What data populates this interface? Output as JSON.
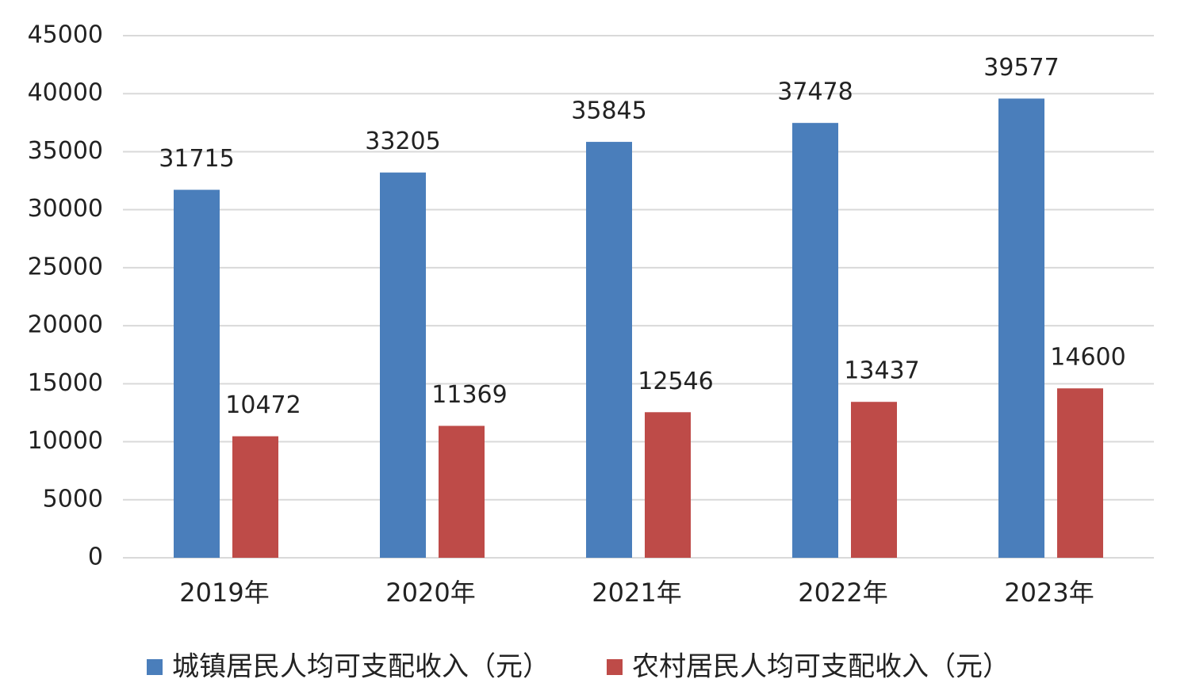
{
  "chart_data": {
    "type": "bar",
    "categories": [
      "2019年",
      "2020年",
      "2021年",
      "2022年",
      "2023年"
    ],
    "series": [
      {
        "name": "城镇居民人均可支配收入（元）",
        "color": "#4a7ebb",
        "values": [
          31715,
          33205,
          35845,
          37478,
          39577
        ]
      },
      {
        "name": "农村居民人均可支配收入（元）",
        "color": "#be4b48",
        "values": [
          10472,
          11369,
          12546,
          13437,
          14600
        ]
      }
    ],
    "ylim": [
      0,
      45000
    ],
    "yticks": [
      0,
      5000,
      10000,
      15000,
      20000,
      25000,
      30000,
      35000,
      40000,
      45000
    ],
    "grid": true,
    "legend": "bottom"
  }
}
